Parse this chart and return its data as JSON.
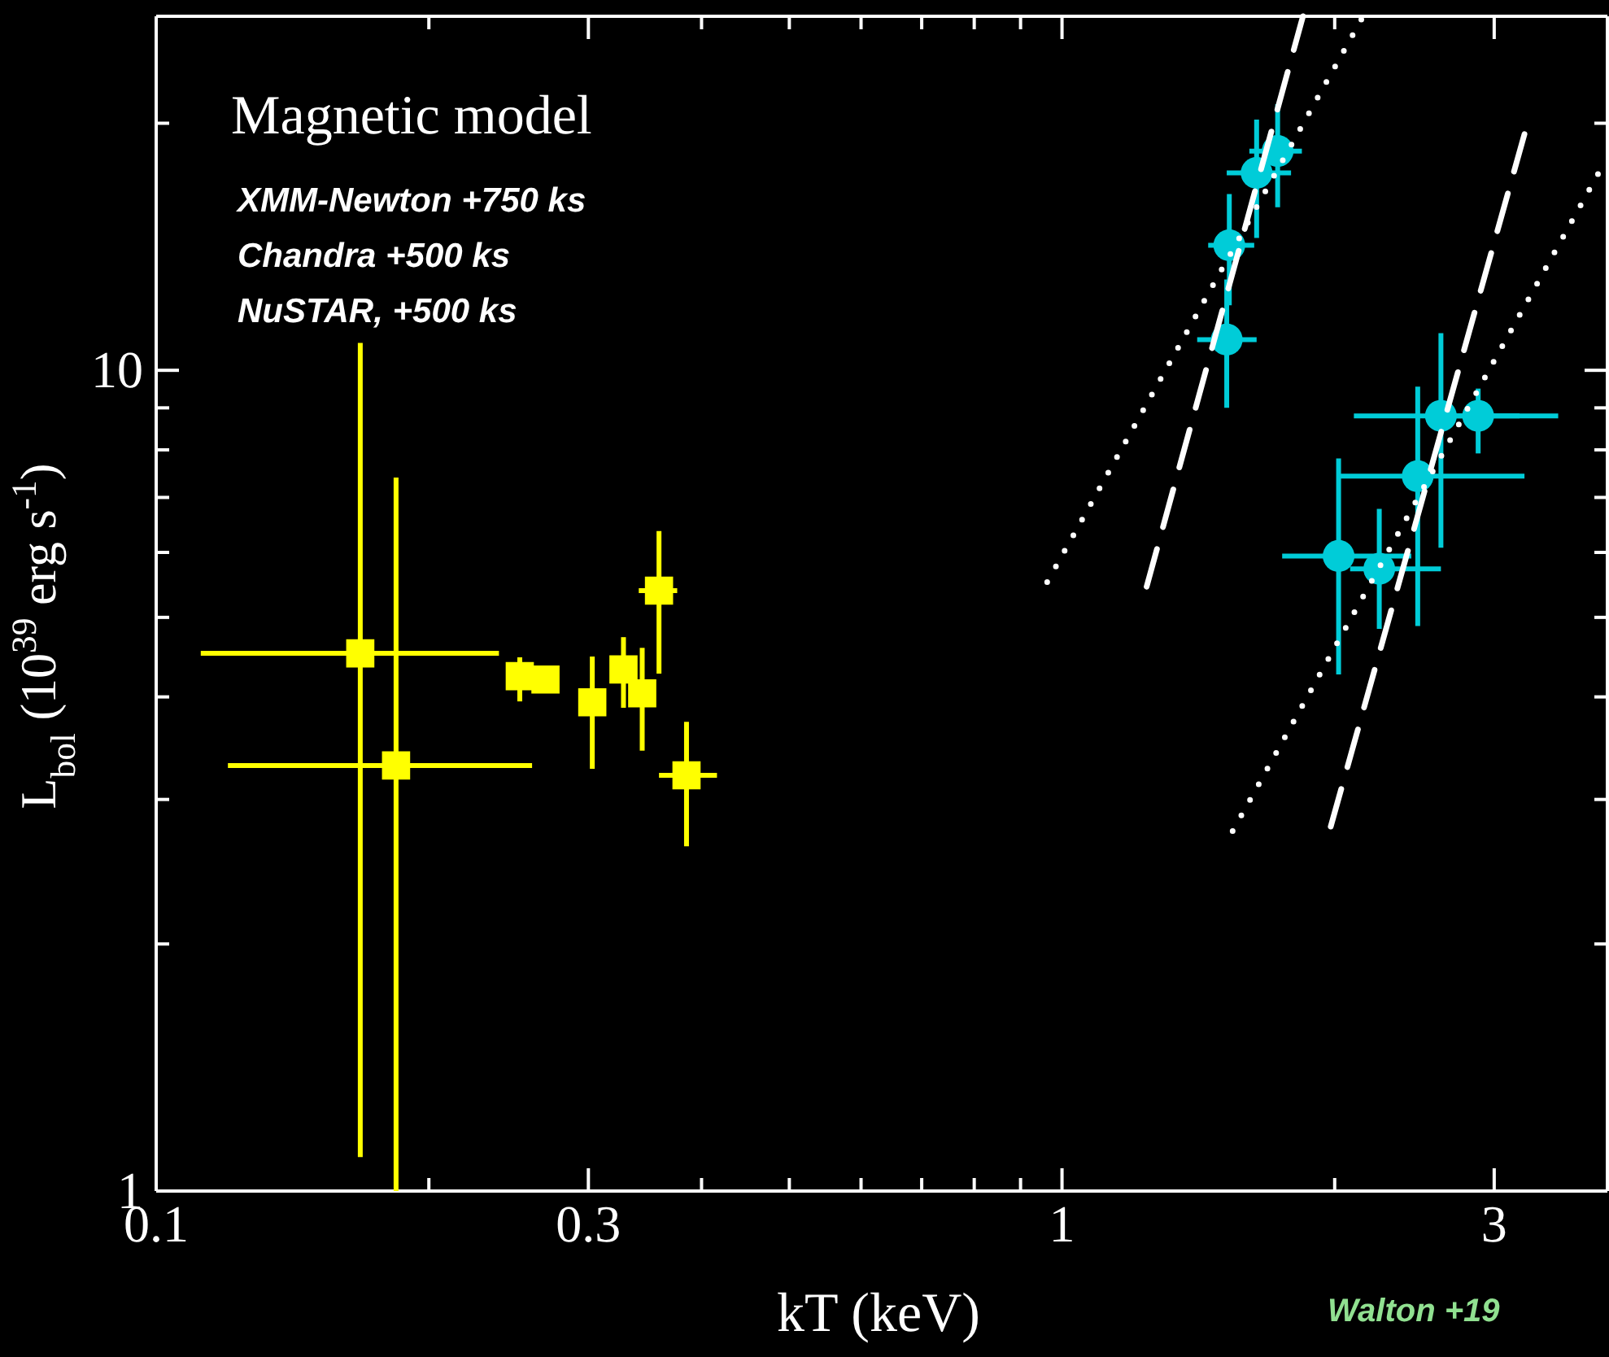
{
  "chart_data": {
    "type": "scatter",
    "xlabel": "kT (keV)",
    "ylabel": "L$_{bol}$ (10$^{39}$ erg s$^{-1}$)",
    "log": "xy",
    "grid": false,
    "xlim": [
      0.1,
      4
    ],
    "ylim": [
      1,
      27
    ],
    "xticks": [
      {
        "value": 0.1,
        "label": "0.1"
      },
      {
        "value": 0.2,
        "label": null
      },
      {
        "value": 0.3,
        "label": "0.3"
      },
      {
        "value": 0.4,
        "label": null
      },
      {
        "value": 0.5,
        "label": null
      },
      {
        "value": 0.6,
        "label": null
      },
      {
        "value": 0.7,
        "label": null
      },
      {
        "value": 0.8,
        "label": null
      },
      {
        "value": 0.9,
        "label": null
      },
      {
        "value": 1,
        "label": "1"
      },
      {
        "value": 2,
        "label": null
      },
      {
        "value": 3,
        "label": "3"
      }
    ],
    "yticks": [
      {
        "value": 1,
        "label": "1"
      },
      {
        "value": 2,
        "label": null
      },
      {
        "value": 3,
        "label": null
      },
      {
        "value": 4,
        "label": null
      },
      {
        "value": 5,
        "label": null
      },
      {
        "value": 6,
        "label": null
      },
      {
        "value": 7,
        "label": null
      },
      {
        "value": 8,
        "label": null
      },
      {
        "value": 9,
        "label": null
      },
      10,
      {
        "value": 20,
        "label": null
      }
    ],
    "annotations": [
      "Magnetic model",
      "XMM-Newton +750 ks",
      "Chandra +500 ks",
      "NuSTAR, +500 ks",
      "Walton +19"
    ],
    "series": [
      {
        "color": "#ffff00",
        "marker": "square",
        "x": [
          0.168,
          0.184,
          0.252,
          0.269,
          0.303
        ],
        "values": [
          4.52,
          3.3,
          4.24,
          4.2,
          3.94
        ],
        "errors": [
          [
            1.1,
            10.8
          ],
          [
            1,
            7.4
          ],
          [
            3.95,
            4.47
          ],
          null,
          [
            3.27,
            4.48
          ]
        ],
        "xerrors": [
          [
            0.112,
            0.239
          ],
          [
            0.12,
            0.26
          ],
          null,
          null,
          null
        ]
      },
      {
        "color": "#ffff00",
        "marker": "square",
        "x": [
          0.328,
          0.344,
          0.359,
          0.385
        ],
        "values": [
          4.32,
          4.04,
          5.39,
          3.21
        ],
        "errors": [
          [
            3.88,
            4.73
          ],
          [
            3.44,
            4.59
          ],
          [
            4.27,
            6.37
          ],
          [
            2.63,
            3.73
          ]
        ],
        "xerrors": [
          null,
          [
            0.336,
            0.354
          ],
          [
            0.341,
            0.376
          ],
          [
            0.359,
            0.416
          ]
        ]
      },
      {
        "color": "#00ccd8",
        "marker": "circle",
        "x": [
          1.73,
          1.64,
          1.53,
          1.52
        ],
        "values": [
          18.5,
          17.4,
          14.2,
          10.9
        ],
        "errors": [
          [
            15.8,
            21.1
          ],
          [
            14.5,
            20.2
          ],
          [
            12.0,
            16.4
          ],
          [
            9.0,
            12.9
          ]
        ],
        "xerrors": [
          [
            1.61,
            1.84
          ],
          [
            1.52,
            1.79
          ],
          [
            1.45,
            1.63
          ],
          [
            1.41,
            1.64
          ]
        ]
      },
      {
        "color": "#00ccd8",
        "marker": "circle",
        "x": [
          2.62,
          2.88,
          2.47,
          2.02,
          2.24
        ],
        "values": [
          8.8,
          8.8,
          7.43,
          5.94,
          5.73
        ],
        "errors": [
          [
            6.08,
            11.1
          ],
          [
            7.92,
            9.5
          ],
          [
            4.88,
            9.55
          ],
          [
            4.26,
            7.81
          ],
          [
            4.84,
            6.78
          ]
        ],
        "xerrors": [
          [
            2.1,
            3.2
          ],
          [
            2.62,
            3.53
          ],
          [
            2.02,
            3.24
          ],
          [
            1.75,
            2.43
          ],
          [
            2.08,
            2.62
          ]
        ]
      },
      {
        "type": "line",
        "color": "#ffffff",
        "line_style": "dotted",
        "marker": "none",
        "x": [
          0.963,
          2.15
        ],
        "values": [
          5.52,
          27
        ]
      },
      {
        "type": "line",
        "color": "#ffffff",
        "line_style": "dashed",
        "marker": "none",
        "x": [
          1.24,
          1.845
        ],
        "values": [
          5.45,
          27
        ]
      },
      {
        "type": "line",
        "color": "#ffffff",
        "line_style": "dotted",
        "marker": "none",
        "x": [
          1.543,
          3.98
        ],
        "values": [
          2.745,
          18.0
        ]
      },
      {
        "type": "line",
        "color": "#ffffff",
        "line_style": "dashed",
        "marker": "none",
        "x": [
          1.98,
          3.24
        ],
        "values": [
          2.78,
          19.4
        ]
      }
    ]
  }
}
